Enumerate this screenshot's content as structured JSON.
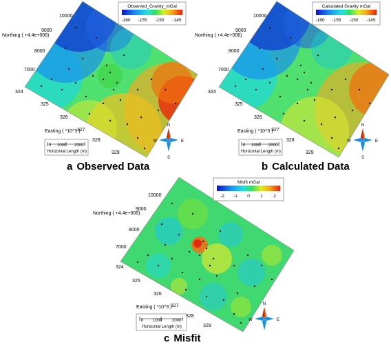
{
  "panels": [
    {
      "id": "a",
      "letter": "a",
      "caption": "Observed Data",
      "colorbar_title": "Observed_Gravity_mGal",
      "colorbar_ticks": [
        "-160",
        "-155",
        "-150",
        "-145"
      ],
      "northing_label": "Northing ( +4.4e+006)",
      "easting_label": "Easting ( *10^3 )",
      "northing_ticks": [
        "10000",
        "9000",
        "8000",
        "7000"
      ],
      "easting_ticks": [
        "324",
        "325",
        "326",
        "327",
        "328",
        "329"
      ],
      "scale_bar": {
        "ticks": [
          "0",
          "1000",
          "2000"
        ],
        "label": "Horizontal Length (m)"
      },
      "compass": {
        "n": "N",
        "s": "S",
        "e": "E",
        "w": "W"
      },
      "colormap": "blue-cyan-green-yellow-red"
    },
    {
      "id": "b",
      "letter": "b",
      "caption": "Calculated Data",
      "colorbar_title": "Calculated Gravity mGal",
      "colorbar_ticks": [
        "-160",
        "-155",
        "-150",
        "-145"
      ],
      "northing_label": "Northing ( +4.4e+006)",
      "easting_label": "Easting ( *10^3 )",
      "northing_ticks": [
        "10000",
        "9000",
        "8000",
        "7000"
      ],
      "easting_ticks": [
        "324",
        "325",
        "326",
        "327",
        "328",
        "329"
      ],
      "scale_bar": {
        "ticks": [
          "0",
          "1000",
          "2000"
        ],
        "label": "Horizontal Length (m)"
      },
      "compass": {
        "n": "N",
        "s": "S",
        "e": "E",
        "w": "W"
      },
      "colormap": "blue-cyan-green-yellow-red"
    },
    {
      "id": "c",
      "letter": "c",
      "caption": "Misfit",
      "colorbar_title": "Misfit mGal",
      "colorbar_ticks": [
        "-2",
        "-1",
        "0",
        "1",
        "2"
      ],
      "northing_label": "Northing ( +4.4e+006)",
      "easting_label": "Easting ( *10^3 )",
      "northing_ticks": [
        "10000",
        "9000",
        "8000",
        "7000"
      ],
      "easting_ticks": [
        "324",
        "325",
        "326",
        "327",
        "328",
        "329"
      ],
      "scale_bar": {
        "ticks": [
          "0",
          "1000",
          "2000"
        ],
        "label": "Horizontal Length (m)"
      },
      "compass": {
        "n": "N",
        "s": "S",
        "e": "E",
        "w": "W"
      },
      "colormap": "blue-cyan-green-yellow-red"
    }
  ],
  "chart_data": [
    {
      "type": "heatmap",
      "title": "Observed Data",
      "colorbar_title": "Observed_Gravity_mGal",
      "value_range": [
        -162,
        -142
      ],
      "xlabel": "Easting ( *10^3 )",
      "ylabel": "Northing ( +4.4e+006)",
      "x_ticks": [
        324,
        325,
        326,
        327,
        328,
        329
      ],
      "y_ticks": [
        7000,
        8000,
        9000,
        10000
      ],
      "note": "gravity surface lowest (blue) in north-west, highest (red) toward east/south-east"
    },
    {
      "type": "heatmap",
      "title": "Calculated Data",
      "colorbar_title": "Calculated Gravity mGal",
      "value_range": [
        -162,
        -142
      ],
      "xlabel": "Easting ( *10^3 )",
      "ylabel": "Northing ( +4.4e+006)",
      "x_ticks": [
        324,
        325,
        326,
        327,
        328,
        329
      ],
      "y_ticks": [
        7000,
        8000,
        9000,
        10000
      ]
    },
    {
      "type": "heatmap",
      "title": "Misfit",
      "colorbar_title": "Misfit mGal",
      "value_range": [
        -2.5,
        2.5
      ],
      "xlabel": "Easting ( *10^3 )",
      "ylabel": "Northing ( +4.4e+006)",
      "x_ticks": [
        324,
        325,
        326,
        327,
        328,
        329
      ],
      "y_ticks": [
        7000,
        8000,
        9000,
        10000
      ]
    }
  ]
}
